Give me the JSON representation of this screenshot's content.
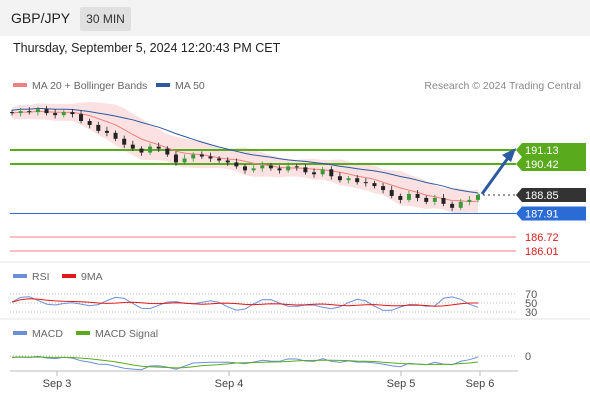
{
  "header": {
    "symbol": "GBP/JPY",
    "timeframe": "30 MIN",
    "datetime": "Thursday, September 5, 2024 12:20:43 PM CET"
  },
  "legend": {
    "bb_label": "MA 20 + Bollinger Bands",
    "ma50_label": "MA 50",
    "credit": "Research © 2024 Trading Central",
    "rsi_label": "RSI",
    "rsi_ma_label": "9MA",
    "macd_label": "MACD",
    "macd_signal_label": "MACD Signal"
  },
  "colors": {
    "ma20": "#f08080",
    "ma50": "#2c5aa0",
    "resistance": "#5aaa1e",
    "support": "#2a6bd6",
    "target": "#d62020",
    "last_price": "#333333",
    "rsi": "#6b8fd6",
    "rsi_ma": "#e01818",
    "macd": "#6b8fd6",
    "macd_signal": "#5aaa1e",
    "arrow": "#2c5aa0"
  },
  "chart_data": [
    {
      "type": "candlestick",
      "panel": "price",
      "x_ticks": [
        "Sep 3",
        "Sep 4",
        "Sep 5",
        "Sep 6"
      ],
      "levels": [
        {
          "name": "resistance-2",
          "value": 191.13,
          "label": "191.13",
          "kind": "resistance"
        },
        {
          "name": "resistance-1",
          "value": 190.42,
          "label": "190.42",
          "kind": "resistance"
        },
        {
          "name": "last-price",
          "value": 188.85,
          "label": "188.85",
          "kind": "last"
        },
        {
          "name": "pivot",
          "value": 187.91,
          "label": "187.91",
          "kind": "pivot"
        },
        {
          "name": "support-1",
          "value": 186.72,
          "label": "186.72",
          "kind": "support"
        },
        {
          "name": "support-2",
          "value": 186.01,
          "label": "186.01",
          "kind": "support"
        }
      ],
      "close_series": [
        193.0,
        193.1,
        193.05,
        193.2,
        193.0,
        192.9,
        193.05,
        192.95,
        192.6,
        192.4,
        192.1,
        192.0,
        191.7,
        191.4,
        191.2,
        191.0,
        191.3,
        191.2,
        190.9,
        190.5,
        190.7,
        190.9,
        190.8,
        190.7,
        190.6,
        190.5,
        190.3,
        190.1,
        190.2,
        190.35,
        190.2,
        190.1,
        190.3,
        190.25,
        190.0,
        189.9,
        190.15,
        189.8,
        189.6,
        189.7,
        189.5,
        189.45,
        189.3,
        189.1,
        188.8,
        188.6,
        188.9,
        188.7,
        188.5,
        188.7,
        188.4,
        188.2,
        188.5,
        188.6,
        188.85
      ]
    },
    {
      "type": "line",
      "panel": "rsi",
      "levels": [
        70,
        50,
        30
      ],
      "level_labels": [
        "70",
        "50",
        "30"
      ]
    },
    {
      "type": "line",
      "panel": "macd",
      "zero_label": "0"
    }
  ]
}
